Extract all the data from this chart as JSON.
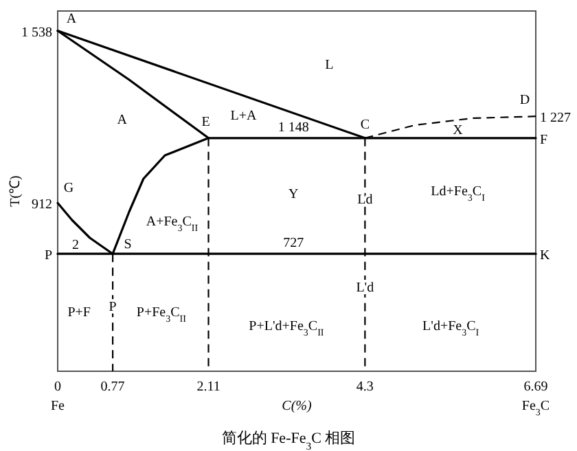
{
  "chart_data": {
    "type": "line",
    "title": "简化的 Fe-Fe$_{3}$C 相图",
    "xlabel": "C(%)",
    "ylabel": "T(℃)",
    "xlim": [
      0,
      6.69
    ],
    "ylim": [
      300,
      1610
    ],
    "xticks": [
      0,
      0.77,
      2.11,
      4.3,
      6.69
    ],
    "yticks": [
      {
        "value": 1538,
        "label": "1 538"
      },
      912,
      {
        "value": 727,
        "label": "P"
      }
    ],
    "grid": false,
    "marker": "none",
    "series": [
      {
        "color": "#000000",
        "line_style": "solid",
        "x": [
          0,
          4.3
        ],
        "values": [
          1538,
          1148
        ]
      },
      {
        "color": "#000000",
        "line_style": "dashed",
        "x": [
          4.3,
          5.0,
          5.8,
          6.69
        ],
        "values": [
          1148,
          1195,
          1220,
          1227
        ]
      },
      {
        "color": "#000000",
        "line_style": "solid",
        "x": [
          0,
          1.0,
          2.11
        ],
        "values": [
          1538,
          1360,
          1148
        ]
      },
      {
        "color": "#000000",
        "line_style": "solid",
        "x": [
          0.77,
          1.0,
          1.2,
          1.5,
          2.11,
          6.69
        ],
        "values": [
          727,
          880,
          1000,
          1085,
          1148,
          1148
        ]
      },
      {
        "color": "#000000",
        "line_style": "solid",
        "x": [
          0,
          0.2,
          0.45,
          0.77
        ],
        "values": [
          912,
          850,
          785,
          727
        ]
      },
      {
        "color": "#000000",
        "line_style": "solid",
        "x": [
          0,
          6.69
        ],
        "values": [
          727,
          727
        ]
      },
      {
        "color": "#000000",
        "line_style": "dashed",
        "x": [
          0.77,
          0.77
        ],
        "values": [
          727,
          300
        ]
      },
      {
        "color": "#000000",
        "line_style": "dashed",
        "x": [
          2.11,
          2.11
        ],
        "values": [
          1148,
          300
        ]
      },
      {
        "color": "#000000",
        "line_style": "dashed",
        "x": [
          4.3,
          4.3
        ],
        "values": [
          1148,
          300
        ]
      }
    ],
    "annotations": [
      {
        "text": "A",
        "x": 0,
        "y": 1538
      },
      {
        "text": "E",
        "x": 2.11,
        "y": 1148
      },
      {
        "text": "C",
        "x": 4.3,
        "y": 1148
      },
      {
        "text": "D",
        "x": 6.69,
        "y": 1227
      },
      {
        "text": "1 227",
        "x": 6.69,
        "y": 1227
      },
      {
        "text": "1 148",
        "x": 3.3,
        "y": 1148
      },
      {
        "text": "F",
        "x": 6.69,
        "y": 1148
      },
      {
        "text": "G",
        "x": 0,
        "y": 912
      },
      {
        "text": "S",
        "x": 0.77,
        "y": 727
      },
      {
        "text": "727",
        "x": 3.3,
        "y": 727
      },
      {
        "text": "K",
        "x": 6.69,
        "y": 727
      },
      {
        "text": "Ld",
        "x": 4.3,
        "y": 930
      },
      {
        "text": "P",
        "x": 0.77,
        "y": 540
      },
      {
        "text": "L'd",
        "x": 4.3,
        "y": 610
      },
      "L",
      "L+A",
      "X",
      "A",
      "Y",
      "Ld+Fe$_{3}$C$_{I}$",
      "A+Fe$_{3}$C$_{II}$",
      "2",
      "P+F",
      "P+Fe$_{3}$C$_{II}$",
      "P+L'd+Fe$_{3}$C$_{II}$",
      "L'd+Fe$_{3}$C$_{I}$",
      "Fe",
      "Fe$_{3}$C"
    ]
  }
}
